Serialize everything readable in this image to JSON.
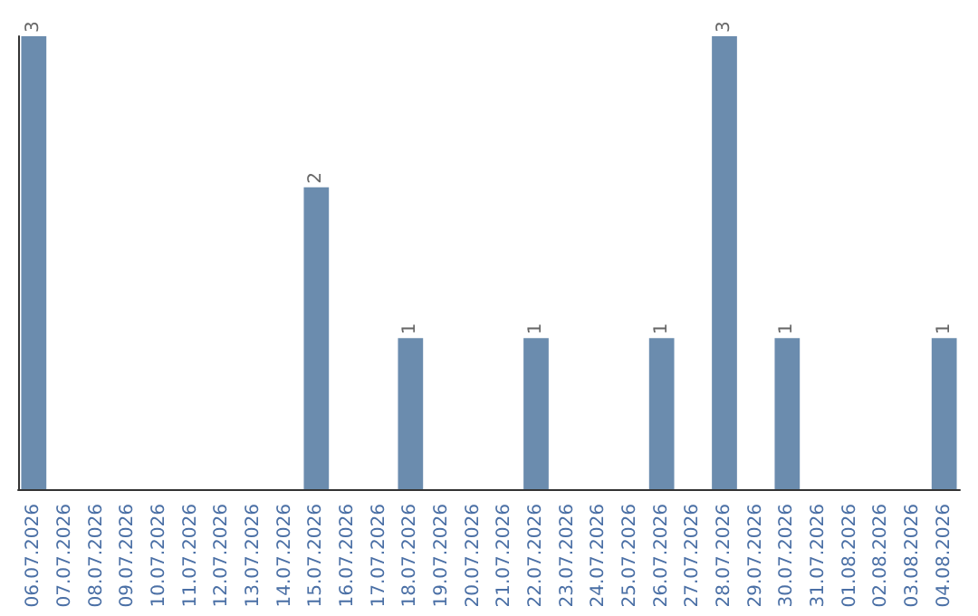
{
  "chart_data": {
    "type": "bar",
    "categories": [
      "06.07.2026",
      "07.07.2026",
      "08.07.2026",
      "09.07.2026",
      "10.07.2026",
      "11.07.2026",
      "12.07.2026",
      "13.07.2026",
      "14.07.2026",
      "15.07.2026",
      "16.07.2026",
      "17.07.2026",
      "18.07.2026",
      "19.07.2026",
      "20.07.2026",
      "21.07.2026",
      "22.07.2026",
      "23.07.2026",
      "24.07.2026",
      "25.07.2026",
      "26.07.2026",
      "27.07.2026",
      "28.07.2026",
      "29.07.2026",
      "30.07.2026",
      "31.07.2026",
      "01.08.2026",
      "02.08.2026",
      "03.08.2026",
      "04.08.2026"
    ],
    "values": [
      3,
      0,
      0,
      0,
      0,
      0,
      0,
      0,
      0,
      2,
      0,
      0,
      1,
      0,
      0,
      0,
      1,
      0,
      0,
      0,
      1,
      0,
      3,
      0,
      1,
      0,
      0,
      0,
      0,
      1
    ],
    "value_labels": [
      "3",
      null,
      null,
      null,
      null,
      null,
      null,
      null,
      null,
      "2",
      null,
      null,
      "1",
      null,
      null,
      null,
      "1",
      null,
      null,
      null,
      "1",
      null,
      "3",
      null,
      "1",
      null,
      null,
      null,
      null,
      "1"
    ],
    "color": "#6b8cae",
    "ylim": [
      0,
      3
    ],
    "tick_labels": "x"
  }
}
